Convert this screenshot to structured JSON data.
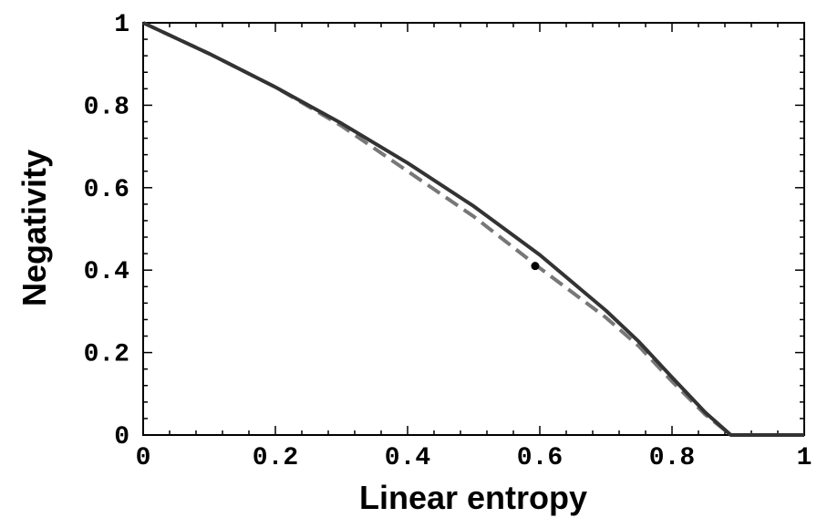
{
  "chart_data": {
    "type": "line",
    "xlabel": "Linear entropy",
    "ylabel": "Negativity",
    "xlim": [
      0,
      1
    ],
    "ylim": [
      0,
      1
    ],
    "xticks": [
      0,
      0.2,
      0.4,
      0.6,
      0.8,
      1
    ],
    "yticks": [
      0,
      0.2,
      0.4,
      0.6,
      0.8,
      1
    ],
    "xtick_labels": [
      "0",
      "0.2",
      "0.4",
      "0.6",
      "0.8",
      "1"
    ],
    "ytick_labels": [
      "0",
      "0.2",
      "0.4",
      "0.6",
      "0.8",
      "1"
    ],
    "grid": false,
    "series": [
      {
        "style": "solid",
        "color": "#333333",
        "x": [
          0,
          0.1,
          0.2,
          0.3,
          0.4,
          0.5,
          0.6,
          0.7,
          0.75,
          0.8,
          0.85,
          0.889,
          0.95,
          1.0
        ],
        "y": [
          1.0,
          0.925,
          0.844,
          0.756,
          0.66,
          0.555,
          0.437,
          0.302,
          0.226,
          0.14,
          0.055,
          0.0,
          0.0,
          0.0
        ]
      },
      {
        "style": "dashed",
        "color": "#777777",
        "x": [
          0,
          0.1,
          0.2,
          0.3,
          0.4,
          0.5,
          0.6,
          0.7,
          0.75,
          0.8,
          0.85,
          0.889
        ],
        "y": [
          1.0,
          0.925,
          0.844,
          0.75,
          0.64,
          0.53,
          0.405,
          0.285,
          0.215,
          0.13,
          0.05,
          0.0
        ]
      }
    ],
    "points": [
      {
        "x": 0.593,
        "y": 0.41,
        "color": "#000000"
      }
    ]
  }
}
